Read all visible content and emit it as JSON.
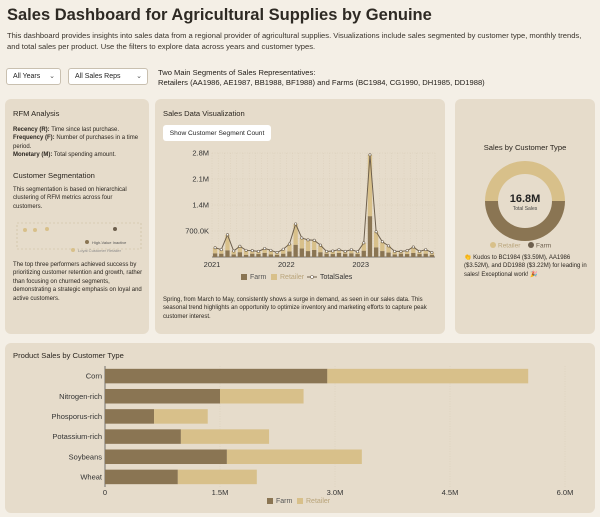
{
  "header": {
    "title": "Sales Dashboard for Agricultural Supplies by Genuine",
    "description": "This dashboard provides insights into sales data from a regional provider of agricultural supplies. Visualizations include sales segmented by customer type, monthly trends, and total sales per product. Use the filters to explore data across years and customer types."
  },
  "filters": {
    "year": "All Years",
    "reps": "All Sales Reps",
    "segments_line1": "Two Main Segments of Sales Representatives:",
    "segments_line2": "Retailers (AA1986, AE1987, BB1988, BF1988) and Farms (BC1984, CG1990, DH1985, DD1988)"
  },
  "rfm": {
    "title": "RFM Analysis",
    "recency_label": "Recency (R):",
    "recency_text": " Time since last purchase.",
    "frequency_label": "Frequency (F):",
    "frequency_text": " Number of purchases in a time period.",
    "monetary_label": "Monetary (M):",
    "monetary_text": " Total spending amount.",
    "segmentation_title": "Customer Segmentation",
    "segmentation_text": "This segmentation is based on hierarchical clustering of RFM metrics across four customers.",
    "legend_high": "High-Value Inactive",
    "legend_loyal": "Loyal Customer Retailer",
    "summary": "The top three performers achieved success by prioritizing customer retention and growth, rather than focusing on churned segments, demonstrating a strategic emphasis on loyal and active customers."
  },
  "sales_viz": {
    "title": "Sales Data Visualization",
    "button": "Show Customer Segment Count",
    "note": "Spring, from March to May, consistently shows a surge in demand, as seen in our sales data. This seasonal trend highlights an opportunity to optimize inventory and marketing efforts to capture peak customer interest."
  },
  "donut": {
    "title": "Sales by Customer Type",
    "center_value": "16.8M",
    "center_label": "Total Sales",
    "kudos": "Kudos to BC1984 ($3.59M), AA1986 ($3.52M), and DD1988 ($3.22M) for leading in sales! Exceptional work!",
    "kudos_icon": "👏",
    "kudos_end_icon": "🎉"
  },
  "product": {
    "title": "Product Sales by Customer Type"
  },
  "colors": {
    "farm": "#8a7553",
    "retailer": "#d8c08a",
    "line": "#6d5f4d"
  },
  "chart_data": [
    {
      "type": "bar+line",
      "title": "",
      "xlabel": "",
      "ylabel": "",
      "ylim": [
        0,
        2800000
      ],
      "yticks": [
        "700.0K",
        "1.4M",
        "2.1M",
        "2.8M"
      ],
      "xticks": [
        "2021",
        "2022",
        "2023"
      ],
      "legend": [
        "Farm",
        "Retailer",
        "TotalSales"
      ],
      "legend_position": "bottom",
      "grid": true,
      "months": 36,
      "series": [
        {
          "name": "Farm",
          "values": [
            100000,
            90000,
            180000,
            70000,
            130000,
            60000,
            90000,
            80000,
            110000,
            70000,
            60000,
            90000,
            150000,
            330000,
            230000,
            160000,
            190000,
            130000,
            90000,
            80000,
            110000,
            90000,
            100000,
            80000,
            170000,
            1100000,
            260000,
            160000,
            120000,
            70000,
            90000,
            80000,
            110000,
            80000,
            90000,
            60000
          ]
        },
        {
          "name": "Retailer",
          "values": [
            150000,
            110000,
            420000,
            90000,
            160000,
            120000,
            80000,
            70000,
            120000,
            110000,
            60000,
            120000,
            200000,
            560000,
            280000,
            300000,
            260000,
            190000,
            60000,
            80000,
            90000,
            60000,
            100000,
            60000,
            210000,
            1650000,
            420000,
            250000,
            180000,
            80000,
            60000,
            90000,
            160000,
            70000,
            110000,
            60000
          ]
        },
        {
          "name": "TotalSales",
          "values": [
            250000,
            200000,
            600000,
            160000,
            290000,
            180000,
            170000,
            150000,
            230000,
            180000,
            120000,
            210000,
            350000,
            890000,
            510000,
            460000,
            450000,
            320000,
            150000,
            160000,
            200000,
            150000,
            200000,
            140000,
            380000,
            2750000,
            680000,
            410000,
            300000,
            150000,
            150000,
            170000,
            270000,
            150000,
            200000,
            120000
          ]
        }
      ]
    },
    {
      "type": "pie",
      "title": "Sales by Customer Type",
      "categories": [
        "Retailer",
        "Farm"
      ],
      "values": [
        8.4,
        8.4
      ],
      "total": "16.8M",
      "legend_position": "bottom"
    },
    {
      "type": "bar",
      "orientation": "horizontal",
      "stacked": true,
      "title": "Product Sales by Customer Type",
      "categories": [
        "Corn",
        "Nitrogen-rich",
        "Phosporus-rich",
        "Potassium-rich",
        "Soybeans",
        "Wheat"
      ],
      "xlim": [
        0,
        6000000
      ],
      "xticks": [
        "0",
        "1.5M",
        "3.0M",
        "4.5M",
        "6.0M"
      ],
      "legend": [
        "Farm",
        "Retailer"
      ],
      "legend_position": "bottom",
      "series": [
        {
          "name": "Farm",
          "values": [
            2900000,
            1500000,
            640000,
            990000,
            1590000,
            950000
          ]
        },
        {
          "name": "Retailer",
          "values": [
            2620000,
            1090000,
            700000,
            1150000,
            1760000,
            1030000
          ]
        }
      ]
    }
  ]
}
